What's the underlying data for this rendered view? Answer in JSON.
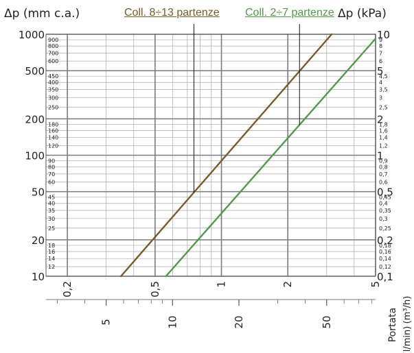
{
  "chart_data": {
    "type": "line",
    "xscale": "log",
    "yscale": "log",
    "left_axis_label": "Δp (mm c.a.)",
    "right_axis_label": "Δp (kPa)",
    "bottom_axis_label_1": "Portata",
    "bottom_axis_label_2": "(m³/h)",
    "bottom_axis_label_3": "(l/min)",
    "xlim_m3h": [
      0.16,
      5.0
    ],
    "ylim_mmca": [
      10,
      1000
    ],
    "grid": true,
    "left_ticks_major": [
      "1000",
      "500",
      "200",
      "100",
      "50",
      "20",
      "10"
    ],
    "left_ticks_minor": [
      "900",
      "800",
      "700",
      "600",
      "450",
      "400",
      "350",
      "300",
      "250",
      "180",
      "160",
      "140",
      "120",
      "90",
      "80",
      "70",
      "60",
      "45",
      "40",
      "35",
      "30",
      "25",
      "18",
      "16",
      "14",
      "12"
    ],
    "right_ticks_major": [
      "10",
      "5",
      "2",
      "1",
      "0,5",
      "0,2",
      "0,1"
    ],
    "right_ticks_minor": [
      "9",
      "8",
      "7",
      "6",
      "4,5",
      "4",
      "3,5",
      "3",
      "2,5",
      "1,8",
      "1,6",
      "1,4",
      "1,2",
      "0,9",
      "0,8",
      "0,7",
      "0,6",
      "0,45",
      "0,4",
      "0,35",
      "0,3",
      "0,25",
      "0,18",
      "0,16",
      "0,14",
      "0,12"
    ],
    "x_ticks_m3h": [
      "0,2",
      "0,5",
      "1",
      "2",
      "5"
    ],
    "x_ticks_lmin": [
      "5",
      "10",
      "20",
      "50"
    ],
    "series": [
      {
        "name": "Coll. 8÷13 partenze",
        "color": "#7a5a24",
        "points": [
          [
            0.35,
            10
          ],
          [
            3.16,
            1000
          ]
        ]
      },
      {
        "name": "Coll. 2÷7 partenze",
        "color": "#4e9a48",
        "points": [
          [
            0.56,
            10
          ],
          [
            5.0,
            920
          ]
        ]
      }
    ]
  }
}
